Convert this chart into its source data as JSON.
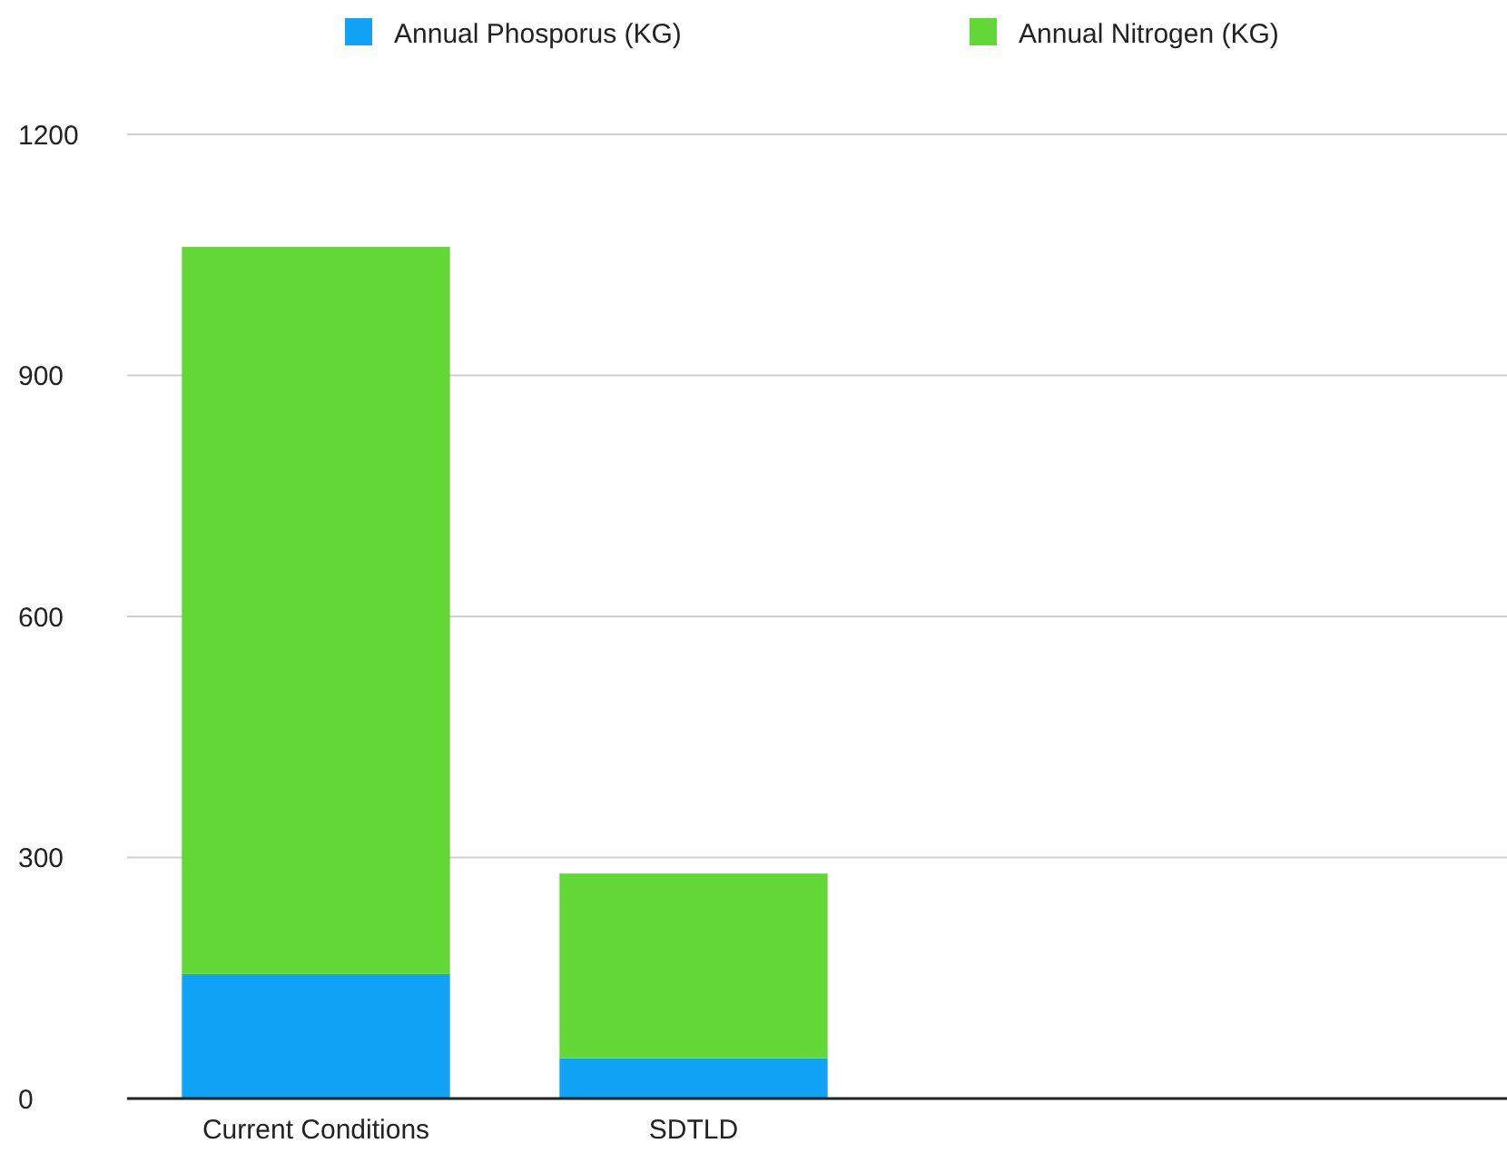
{
  "chart_data": {
    "type": "bar",
    "stacked": true,
    "categories": [
      "Current Conditions",
      "SDTLD"
    ],
    "series": [
      {
        "name": "Annual Phosporus (KG)",
        "color": "#10a2f5",
        "values": [
          155,
          50
        ]
      },
      {
        "name": "Annual Nitrogen (KG)",
        "color": "#62d836",
        "values": [
          905,
          230
        ]
      }
    ],
    "ylim": [
      0,
      1200
    ],
    "yticks": [
      0,
      300,
      600,
      900,
      1200
    ],
    "grid": "y",
    "legend": "top"
  }
}
